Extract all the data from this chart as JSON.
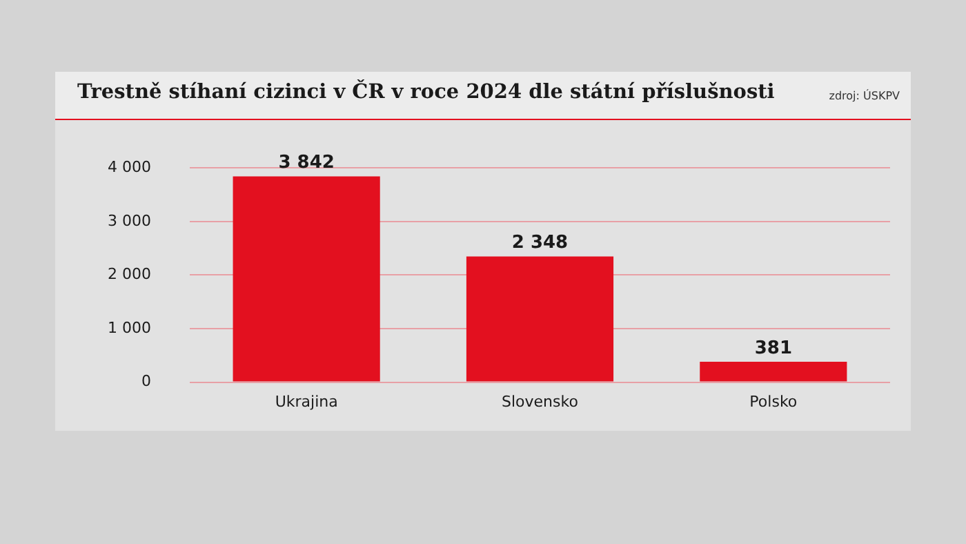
{
  "chart_data": {
    "type": "bar",
    "title": "Trestně stíhaní cizinci v ČR v roce 2024 dle státní příslušnosti",
    "annotations": [
      "zdroj: ÚSKPV"
    ],
    "categories": [
      "Ukrajina",
      "Slovensko",
      "Polsko"
    ],
    "values": [
      3842,
      2348,
      381
    ],
    "value_labels": [
      "3 842",
      "2 348",
      "381"
    ],
    "color": "#e3101f",
    "ylim": [
      0,
      4000
    ],
    "yticks": [
      {
        "value": 0,
        "label": "0"
      },
      {
        "value": 1000,
        "label": "1 000"
      },
      {
        "value": 2000,
        "label": "2 000"
      },
      {
        "value": 3000,
        "label": "3 000"
      },
      {
        "value": 4000,
        "label": "4 000"
      }
    ],
    "grid": "y",
    "legend": false
  }
}
